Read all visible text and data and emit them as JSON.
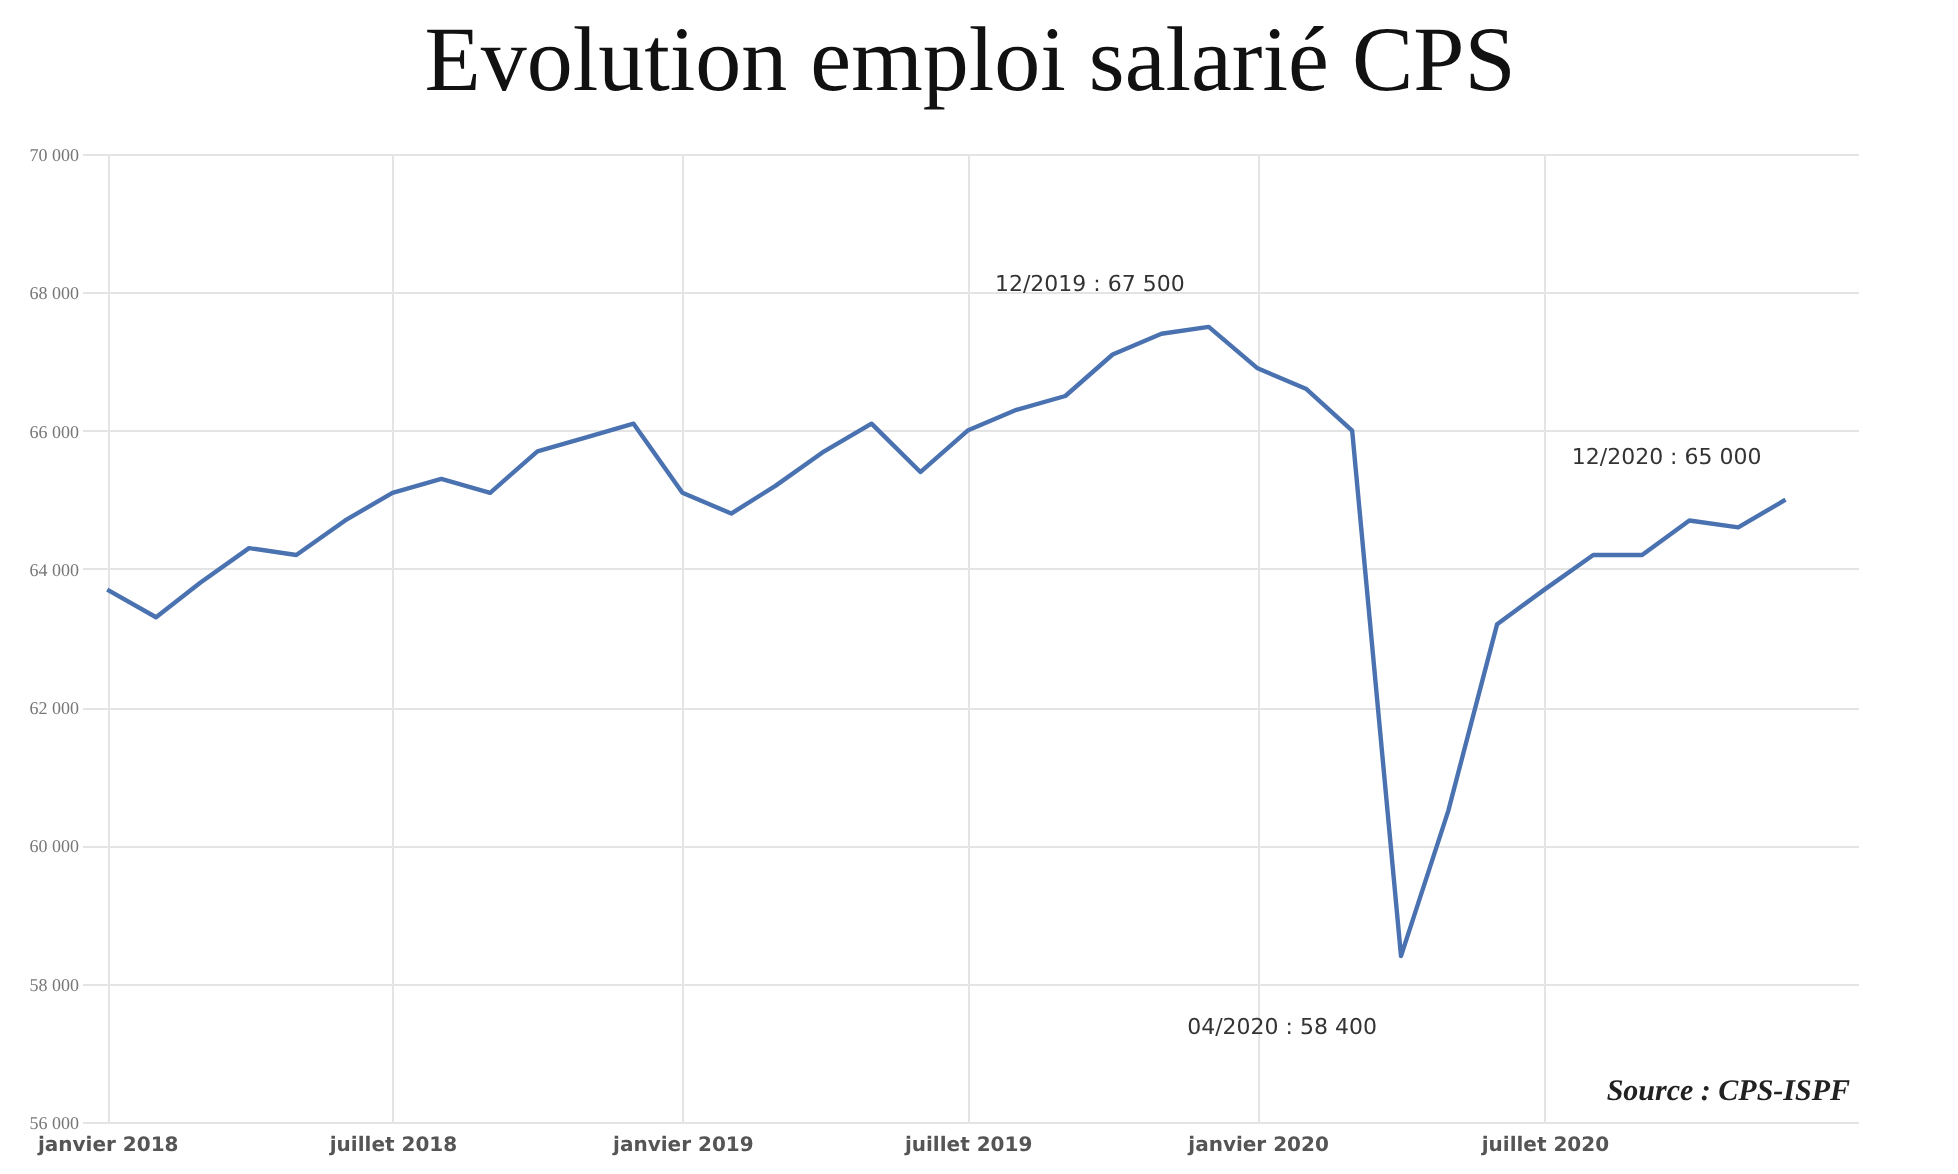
{
  "chart_data": {
    "type": "line",
    "title": "Evolution emploi salarié CPS",
    "x": [
      "2018-01",
      "2018-02",
      "2018-03",
      "2018-04",
      "2018-05",
      "2018-06",
      "2018-07",
      "2018-08",
      "2018-09",
      "2018-10",
      "2018-11",
      "2018-12",
      "2019-01",
      "2019-02",
      "2019-03",
      "2019-04",
      "2019-05",
      "2019-06",
      "2019-07",
      "2019-08",
      "2019-09",
      "2019-10",
      "2019-11",
      "2019-12",
      "2020-01",
      "2020-02",
      "2020-03",
      "2020-04",
      "2020-05",
      "2020-06",
      "2020-07",
      "2020-08",
      "2020-09",
      "2020-10",
      "2020-11",
      "2020-12"
    ],
    "series": [
      {
        "color": "#4a72b0",
        "values": [
          63700,
          63300,
          63800,
          64300,
          64200,
          64700,
          65100,
          65300,
          65100,
          65700,
          65900,
          66100,
          65100,
          64800,
          65200,
          65700,
          66100,
          65400,
          66000,
          66300,
          66500,
          67100,
          67400,
          67500,
          66900,
          66600,
          66000,
          58400,
          60500,
          63200,
          63700,
          64200,
          64200,
          64700,
          64600,
          65000
        ]
      }
    ],
    "xlim": [
      "2017-12-16",
      "2021-01-16"
    ],
    "xticks": [
      {
        "value": "2018-01",
        "label": "janvier 2018"
      },
      {
        "value": "2018-07",
        "label": "juillet 2018"
      },
      {
        "value": "2019-01",
        "label": "janvier 2019"
      },
      {
        "value": "2019-07",
        "label": "juillet 2019"
      },
      {
        "value": "2020-01",
        "label": "janvier 2020"
      },
      {
        "value": "2020-07",
        "label": "juillet 2020"
      }
    ],
    "ylim": [
      56000,
      70000
    ],
    "yticks": [
      {
        "value": 56000,
        "label": "56 000"
      },
      {
        "value": 58000,
        "label": "58 000"
      },
      {
        "value": 60000,
        "label": "60 000"
      },
      {
        "value": 62000,
        "label": "62 000"
      },
      {
        "value": 64000,
        "label": "64 000"
      },
      {
        "value": 66000,
        "label": "66 000"
      },
      {
        "value": 68000,
        "label": "68 000"
      },
      {
        "value": 70000,
        "label": "70 000"
      }
    ],
    "grid": true,
    "annotations": [
      {
        "text": "12/2019 : 67 500",
        "x": "2019-12",
        "y": 67500
      },
      {
        "text": "04/2020 : 58 400",
        "x": "2020-04",
        "y": 58400
      },
      {
        "text": "12/2020 : 65 000",
        "x": "2020-12",
        "y": 65000
      },
      "Source : CPS-ISPF"
    ]
  }
}
